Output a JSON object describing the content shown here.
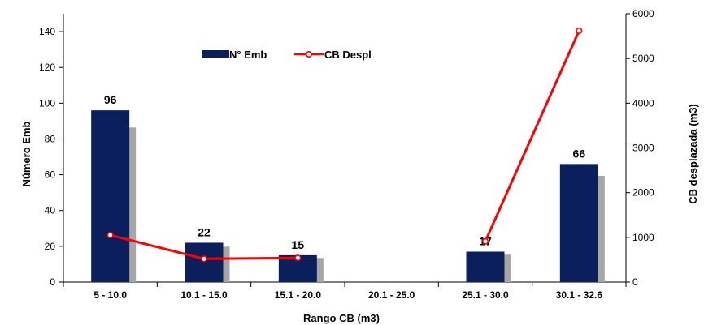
{
  "chart_data": {
    "type": "bar",
    "categories": [
      "5 - 10.0",
      "10.1 -  15.0",
      "15.1 - 20.0",
      "20.1 - 25.0",
      "25.1 - 30.0",
      "30.1 - 32.6"
    ],
    "series": [
      {
        "name": "N° Emb",
        "type": "bar",
        "axis": "left",
        "color": "#0b1f5c",
        "values": [
          96,
          22,
          15,
          null,
          17,
          66
        ],
        "data_labels": [
          "96",
          "22",
          "15",
          "",
          "17",
          "66"
        ]
      },
      {
        "name": "CB Despl",
        "type": "line",
        "axis": "right",
        "color": "#ff0000",
        "values": [
          1050,
          520,
          540,
          null,
          910,
          5620
        ]
      }
    ],
    "xlabel": "Rango CB (m3)",
    "ylabel": "Número Emb",
    "y2label": "CB desplazada (m3)",
    "ylim": [
      0,
      150
    ],
    "y2lim": [
      0,
      6000
    ],
    "yticks": [
      "0",
      "20",
      "40",
      "60",
      "80",
      "100",
      "120",
      "140"
    ],
    "y2ticks": [
      "0",
      "1000",
      "2000",
      "3000",
      "4000",
      "5000",
      "6000"
    ],
    "legend_position": "top-center",
    "grid": false
  }
}
